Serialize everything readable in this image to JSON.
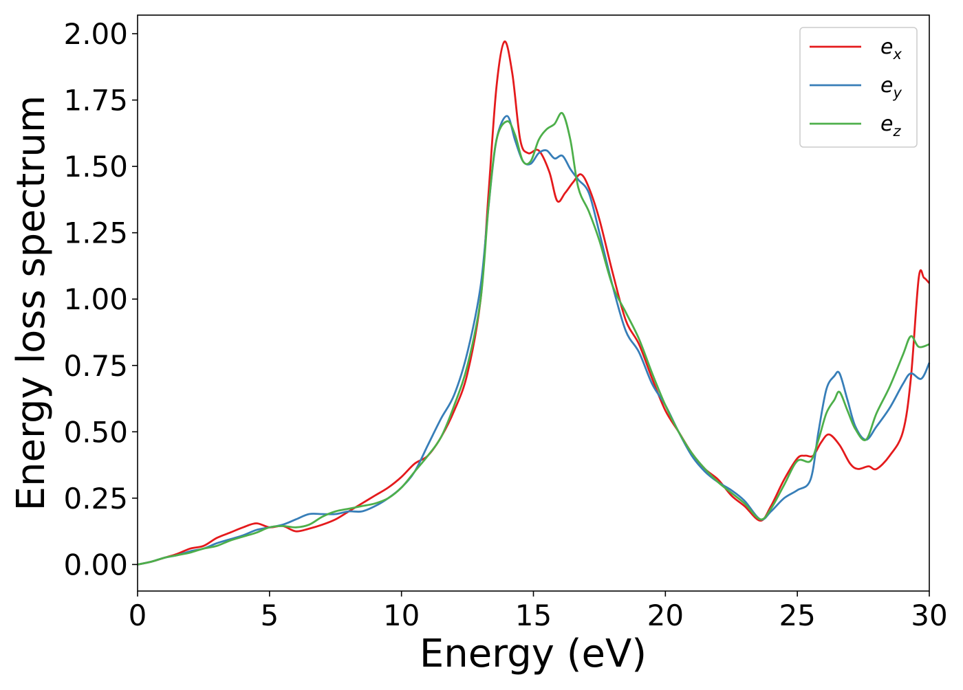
{
  "chart_data": {
    "type": "line",
    "title": "",
    "xlabel": "Energy (eV)",
    "ylabel": "Energy loss spectrum",
    "xlim": [
      0,
      30
    ],
    "ylim": [
      -0.1,
      2.07
    ],
    "xticks": [
      0,
      5,
      10,
      15,
      20,
      25,
      30
    ],
    "xtick_labels": [
      "0",
      "5",
      "10",
      "15",
      "20",
      "25",
      "30"
    ],
    "yticks": [
      0.0,
      0.25,
      0.5,
      0.75,
      1.0,
      1.25,
      1.5,
      1.75,
      2.0
    ],
    "ytick_labels": [
      "0.00",
      "0.25",
      "0.50",
      "0.75",
      "1.00",
      "1.25",
      "1.50",
      "1.75",
      "2.00"
    ],
    "grid": false,
    "legend_position": "top-right",
    "series": [
      {
        "name": "e_x",
        "label_base": "e",
        "label_sub": "x",
        "color": "#e41a1c",
        "x": [
          0,
          0.5,
          1,
          1.5,
          2,
          2.5,
          3,
          3.5,
          4,
          4.5,
          5,
          5.5,
          6,
          6.5,
          7,
          7.5,
          8,
          8.5,
          9,
          9.5,
          10,
          10.5,
          11,
          11.5,
          12,
          12.5,
          13,
          13.3,
          13.6,
          13.9,
          14.2,
          14.5,
          14.8,
          15.2,
          15.6,
          15.9,
          16.2,
          16.5,
          16.8,
          17.1,
          17.5,
          18,
          18.5,
          19,
          19.5,
          20,
          20.5,
          21,
          21.5,
          22,
          22.5,
          23,
          23.6,
          24,
          24.5,
          25,
          25.3,
          25.6,
          25.9,
          26.2,
          26.6,
          27,
          27.3,
          27.7,
          28,
          28.5,
          29,
          29.3,
          29.6,
          29.8,
          30
        ],
        "y": [
          0.0,
          0.01,
          0.025,
          0.04,
          0.06,
          0.07,
          0.1,
          0.12,
          0.14,
          0.155,
          0.14,
          0.145,
          0.125,
          0.135,
          0.15,
          0.17,
          0.2,
          0.23,
          0.26,
          0.29,
          0.33,
          0.38,
          0.41,
          0.48,
          0.58,
          0.72,
          1.0,
          1.4,
          1.8,
          1.97,
          1.85,
          1.6,
          1.55,
          1.56,
          1.48,
          1.37,
          1.4,
          1.44,
          1.47,
          1.42,
          1.3,
          1.1,
          0.92,
          0.83,
          0.7,
          0.58,
          0.5,
          0.42,
          0.36,
          0.32,
          0.26,
          0.22,
          0.165,
          0.22,
          0.32,
          0.4,
          0.41,
          0.41,
          0.46,
          0.49,
          0.45,
          0.38,
          0.36,
          0.37,
          0.36,
          0.41,
          0.5,
          0.7,
          1.08,
          1.08,
          1.06
        ]
      },
      {
        "name": "e_y",
        "label_base": "e",
        "label_sub": "y",
        "color": "#377eb8",
        "x": [
          0,
          0.5,
          1,
          1.5,
          2,
          2.5,
          3,
          3.5,
          4,
          4.5,
          5,
          5.5,
          6,
          6.5,
          7,
          7.5,
          8,
          8.5,
          9,
          9.5,
          10,
          10.5,
          11,
          11.5,
          12,
          12.5,
          13,
          13.3,
          13.6,
          14.0,
          14.3,
          14.6,
          14.9,
          15.2,
          15.5,
          15.8,
          16.1,
          16.4,
          16.7,
          17.1,
          17.5,
          18,
          18.5,
          19,
          19.5,
          20,
          20.5,
          21,
          21.5,
          22,
          22.5,
          23,
          23.6,
          24,
          24.5,
          25,
          25.5,
          25.8,
          26.1,
          26.4,
          26.6,
          26.9,
          27.2,
          27.6,
          28,
          28.5,
          29,
          29.3,
          29.7,
          30
        ],
        "y": [
          0.0,
          0.01,
          0.025,
          0.035,
          0.05,
          0.06,
          0.08,
          0.095,
          0.11,
          0.13,
          0.14,
          0.15,
          0.17,
          0.19,
          0.19,
          0.19,
          0.2,
          0.2,
          0.22,
          0.25,
          0.29,
          0.35,
          0.45,
          0.55,
          0.64,
          0.8,
          1.05,
          1.35,
          1.6,
          1.69,
          1.6,
          1.52,
          1.51,
          1.55,
          1.56,
          1.53,
          1.54,
          1.49,
          1.45,
          1.4,
          1.25,
          1.05,
          0.88,
          0.8,
          0.68,
          0.6,
          0.5,
          0.41,
          0.35,
          0.31,
          0.28,
          0.24,
          0.17,
          0.2,
          0.25,
          0.28,
          0.32,
          0.5,
          0.66,
          0.71,
          0.72,
          0.62,
          0.52,
          0.47,
          0.52,
          0.59,
          0.68,
          0.72,
          0.7,
          0.76
        ]
      },
      {
        "name": "e_z",
        "label_base": "e",
        "label_sub": "z",
        "color": "#4daf4a",
        "x": [
          0,
          0.5,
          1,
          1.5,
          2,
          2.5,
          3,
          3.5,
          4,
          4.5,
          5,
          5.5,
          6,
          6.5,
          7,
          7.5,
          8,
          8.5,
          9,
          9.5,
          10,
          10.5,
          11,
          11.5,
          12,
          12.5,
          13,
          13.3,
          13.6,
          14.0,
          14.3,
          14.6,
          14.9,
          15.2,
          15.5,
          15.8,
          16.1,
          16.4,
          16.7,
          17.1,
          17.5,
          18,
          18.5,
          19,
          19.5,
          20,
          20.5,
          21,
          21.5,
          22,
          22.5,
          23,
          23.6,
          24,
          24.5,
          25,
          25.5,
          25.8,
          26.1,
          26.4,
          26.6,
          26.9,
          27.2,
          27.6,
          28,
          28.5,
          29,
          29.3,
          29.6,
          30
        ],
        "y": [
          0.0,
          0.01,
          0.025,
          0.035,
          0.045,
          0.06,
          0.07,
          0.09,
          0.105,
          0.12,
          0.14,
          0.145,
          0.14,
          0.15,
          0.18,
          0.2,
          0.21,
          0.22,
          0.23,
          0.25,
          0.29,
          0.35,
          0.41,
          0.48,
          0.6,
          0.75,
          1.0,
          1.35,
          1.6,
          1.67,
          1.62,
          1.52,
          1.52,
          1.6,
          1.64,
          1.66,
          1.7,
          1.6,
          1.42,
          1.33,
          1.22,
          1.05,
          0.95,
          0.85,
          0.72,
          0.6,
          0.5,
          0.42,
          0.36,
          0.31,
          0.27,
          0.23,
          0.17,
          0.21,
          0.3,
          0.39,
          0.39,
          0.47,
          0.57,
          0.62,
          0.65,
          0.58,
          0.51,
          0.47,
          0.57,
          0.67,
          0.79,
          0.86,
          0.82,
          0.83
        ]
      }
    ]
  }
}
